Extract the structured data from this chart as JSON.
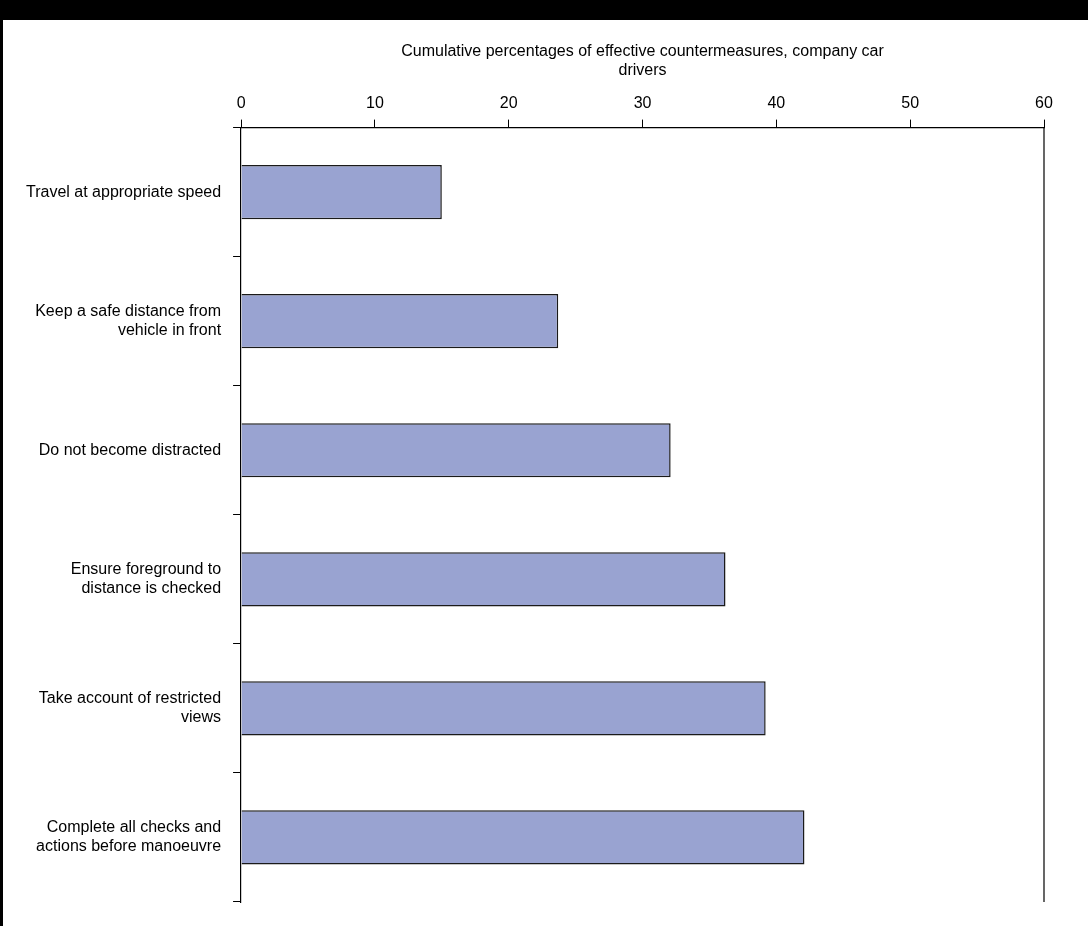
{
  "chart_data": {
    "type": "bar",
    "orientation": "horizontal",
    "xlabel": "Cumulative percentages of effective countermeasures, company car drivers",
    "categories": [
      "Travel at appropriate speed",
      "Keep a safe distance from vehicle in front",
      "Do not become distracted",
      "Ensure foreground to distance is checked",
      "Take account of restricted views",
      "Complete all checks and actions before manoeuvre"
    ],
    "values": [
      15,
      23.7,
      32.1,
      36.2,
      39.2,
      42.1
    ],
    "color": "#99a3d1",
    "xlim": [
      0,
      60
    ],
    "xticks": [
      0,
      10,
      20,
      30,
      40,
      50,
      60
    ],
    "grid": false,
    "legend": false
  }
}
